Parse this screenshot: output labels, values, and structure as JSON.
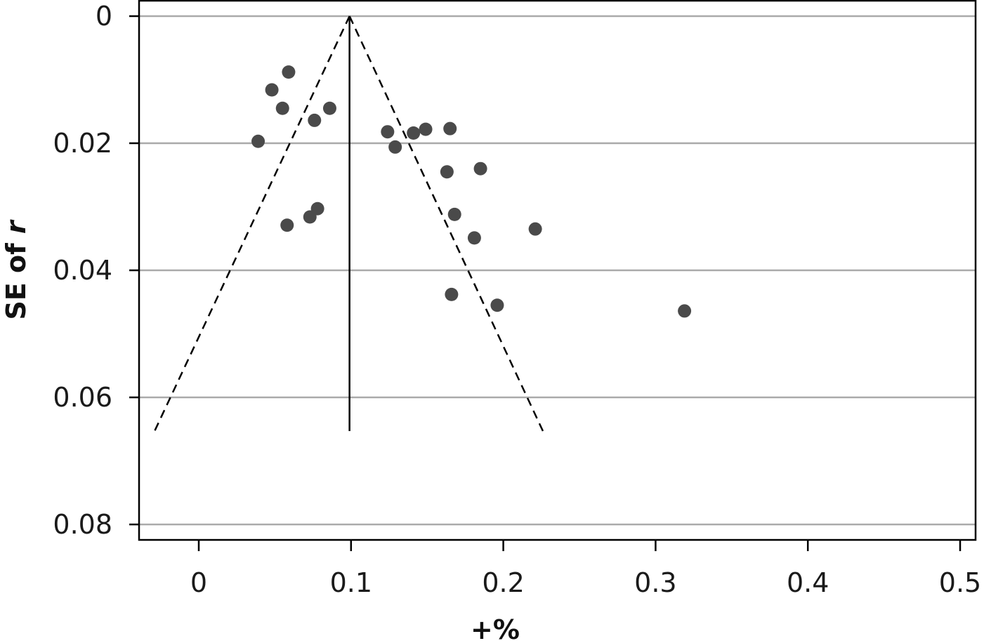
{
  "chart_data": {
    "type": "scatter",
    "title": "",
    "xlabel": "+%",
    "ylabel_parts": [
      {
        "text": "SE of ",
        "italic": false
      },
      {
        "text": "r",
        "italic": true
      }
    ],
    "xlim": [
      -0.04,
      0.51
    ],
    "ylim": [
      0,
      0.0825
    ],
    "y_reversed": true,
    "x_ticks": [
      {
        "value": 0,
        "label": "0"
      },
      {
        "value": 0.1,
        "label": "0.1"
      },
      {
        "value": 0.2,
        "label": "0.2"
      },
      {
        "value": 0.3,
        "label": "0.3"
      },
      {
        "value": 0.4,
        "label": "0.4"
      },
      {
        "value": 0.5,
        "label": "0.5"
      }
    ],
    "y_ticks": [
      {
        "value": 0,
        "label": "0"
      },
      {
        "value": 0.02,
        "label": "0.02"
      },
      {
        "value": 0.04,
        "label": "0.04"
      },
      {
        "value": 0.06,
        "label": "0.06"
      },
      {
        "value": 0.08,
        "label": "0.08"
      }
    ],
    "grid": "horizontal",
    "pooled_estimate": {
      "x": 0.099,
      "y_top": 0,
      "y_bottom": 0.0653
    },
    "funnel_limits": {
      "apex": {
        "x": 0.099,
        "y": 0
      },
      "left_end": {
        "x": -0.029,
        "y": 0.0653
      },
      "right_end": {
        "x": 0.226,
        "y": 0.0653
      }
    },
    "points": [
      {
        "x": 0.059,
        "y": 0.0088
      },
      {
        "x": 0.048,
        "y": 0.0116
      },
      {
        "x": 0.055,
        "y": 0.0145
      },
      {
        "x": 0.086,
        "y": 0.0145
      },
      {
        "x": 0.076,
        "y": 0.0164
      },
      {
        "x": 0.039,
        "y": 0.0197
      },
      {
        "x": 0.124,
        "y": 0.0182
      },
      {
        "x": 0.141,
        "y": 0.0184
      },
      {
        "x": 0.149,
        "y": 0.0178
      },
      {
        "x": 0.165,
        "y": 0.0177
      },
      {
        "x": 0.129,
        "y": 0.0206
      },
      {
        "x": 0.163,
        "y": 0.0245
      },
      {
        "x": 0.185,
        "y": 0.024
      },
      {
        "x": 0.078,
        "y": 0.0303
      },
      {
        "x": 0.073,
        "y": 0.0316
      },
      {
        "x": 0.058,
        "y": 0.0329
      },
      {
        "x": 0.168,
        "y": 0.0312
      },
      {
        "x": 0.181,
        "y": 0.0349
      },
      {
        "x": 0.221,
        "y": 0.0335
      },
      {
        "x": 0.166,
        "y": 0.0438
      },
      {
        "x": 0.196,
        "y": 0.0455
      },
      {
        "x": 0.319,
        "y": 0.0464
      }
    ],
    "colors": {
      "points": "#4a4a4a",
      "grid": "#aaaaaa",
      "frame": "#000000",
      "lines": "#000000"
    }
  }
}
